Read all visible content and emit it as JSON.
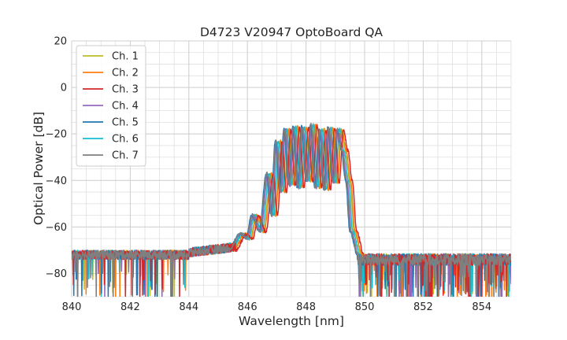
{
  "chart_data": {
    "type": "line",
    "title": "D4723 V20947 OptoBoard QA",
    "xlabel": "Wavelength [nm]",
    "ylabel": "Optical Power [dB]",
    "xlim": [
      840,
      855
    ],
    "ylim": [
      -90,
      20
    ],
    "x_ticks": [
      840,
      842,
      844,
      846,
      848,
      850,
      852,
      854
    ],
    "y_ticks": [
      -80,
      -60,
      -40,
      -20,
      0,
      20
    ],
    "x_minor_step": 0.5,
    "y_minor_step": 5,
    "grid": true,
    "legend_position": "upper-left",
    "noise_floor_db": -73,
    "series": [
      {
        "name": "Ch. 1",
        "color": "#bcbd22",
        "offset_nm": 0.1,
        "peak_db": -17.0,
        "x": [
          845.4,
          845.8,
          846.0,
          846.2,
          846.45,
          846.7,
          846.85,
          847.0,
          847.15,
          847.3,
          847.45,
          847.6,
          847.75,
          847.9,
          848.05,
          848.2,
          848.35,
          848.5,
          848.65,
          848.8,
          848.95,
          849.1,
          849.25,
          849.4,
          849.55,
          849.8
        ],
        "y": [
          -70,
          -63,
          -65,
          -55,
          -62,
          -37,
          -55,
          -23,
          -45,
          -18,
          -42,
          -17,
          -43,
          -17,
          -40,
          -16,
          -43,
          -18,
          -44,
          -17,
          -41,
          -18,
          -27,
          -40,
          -62,
          -72
        ]
      },
      {
        "name": "Ch. 2",
        "color": "#ff7f0e",
        "offset_nm": 0.12,
        "peak_db": -16.5,
        "x": [
          845.4,
          845.8,
          846.0,
          846.2,
          846.45,
          846.7,
          846.85,
          847.0,
          847.15,
          847.3,
          847.45,
          847.6,
          847.75,
          847.9,
          848.05,
          848.2,
          848.35,
          848.5,
          848.65,
          848.8,
          848.95,
          849.1,
          849.25,
          849.4,
          849.55,
          849.8
        ],
        "y": [
          -70,
          -63,
          -65,
          -55,
          -62,
          -37,
          -55,
          -23,
          -45,
          -18,
          -42,
          -17,
          -43,
          -17,
          -40,
          -16,
          -43,
          -18,
          -44,
          -17,
          -41,
          -18,
          -27,
          -40,
          -62,
          -72
        ]
      },
      {
        "name": "Ch. 3",
        "color": "#d62728",
        "offset_nm": 0.18,
        "peak_db": -17.0,
        "x": [
          845.4,
          845.8,
          846.0,
          846.2,
          846.45,
          846.7,
          846.85,
          847.0,
          847.15,
          847.3,
          847.45,
          847.6,
          847.75,
          847.9,
          848.05,
          848.2,
          848.35,
          848.5,
          848.65,
          848.8,
          848.95,
          849.1,
          849.25,
          849.4,
          849.55,
          849.8
        ],
        "y": [
          -70,
          -63,
          -65,
          -55,
          -62,
          -37,
          -55,
          -23,
          -45,
          -18,
          -42,
          -17,
          -43,
          -17,
          -40,
          -16,
          -43,
          -18,
          -44,
          -17,
          -41,
          -18,
          -27,
          -40,
          -62,
          -72
        ]
      },
      {
        "name": "Ch. 4",
        "color": "#9467bd",
        "offset_nm": 0.0,
        "peak_db": -17.0,
        "x": [
          845.4,
          845.8,
          846.0,
          846.2,
          846.45,
          846.7,
          846.85,
          847.0,
          847.15,
          847.3,
          847.45,
          847.6,
          847.75,
          847.9,
          848.05,
          848.2,
          848.35,
          848.5,
          848.65,
          848.8,
          848.95,
          849.1,
          849.25,
          849.4,
          849.55,
          849.8
        ],
        "y": [
          -70,
          -63,
          -65,
          -55,
          -62,
          -37,
          -55,
          -23,
          -45,
          -18,
          -42,
          -17,
          -43,
          -17,
          -40,
          -16,
          -43,
          -18,
          -44,
          -17,
          -41,
          -18,
          -27,
          -40,
          -62,
          -72
        ]
      },
      {
        "name": "Ch. 5",
        "color": "#1f77b4",
        "offset_nm": -0.05,
        "peak_db": -16.0,
        "x": [
          845.4,
          845.8,
          846.0,
          846.2,
          846.45,
          846.7,
          846.85,
          847.0,
          847.15,
          847.3,
          847.45,
          847.6,
          847.75,
          847.9,
          848.05,
          848.2,
          848.35,
          848.5,
          848.65,
          848.8,
          848.95,
          849.1,
          849.25,
          849.4,
          849.55,
          849.8
        ],
        "y": [
          -70,
          -63,
          -65,
          -55,
          -62,
          -37,
          -55,
          -23,
          -45,
          -18,
          -42,
          -17,
          -43,
          -17,
          -40,
          -16,
          -43,
          -18,
          -44,
          -17,
          -41,
          -18,
          -27,
          -40,
          -62,
          -72
        ]
      },
      {
        "name": "Ch. 6",
        "color": "#17becf",
        "offset_nm": 0.05,
        "peak_db": -16.5,
        "x": [
          845.4,
          845.8,
          846.0,
          846.2,
          846.45,
          846.7,
          846.85,
          847.0,
          847.15,
          847.3,
          847.45,
          847.6,
          847.75,
          847.9,
          848.05,
          848.2,
          848.35,
          848.5,
          848.65,
          848.8,
          848.95,
          849.1,
          849.25,
          849.4,
          849.55,
          849.8
        ],
        "y": [
          -70,
          -63,
          -65,
          -55,
          -62,
          -37,
          -55,
          -23,
          -45,
          -18,
          -42,
          -17,
          -43,
          -17,
          -40,
          -16,
          -43,
          -18,
          -44,
          -17,
          -41,
          -18,
          -27,
          -40,
          -62,
          -72
        ]
      },
      {
        "name": "Ch. 7",
        "color": "#7f7f7f",
        "offset_nm": -0.03,
        "peak_db": -16.0,
        "x": [
          845.4,
          845.8,
          846.0,
          846.2,
          846.45,
          846.7,
          846.85,
          847.0,
          847.15,
          847.3,
          847.45,
          847.6,
          847.75,
          847.9,
          848.05,
          848.2,
          848.35,
          848.5,
          848.65,
          848.8,
          848.95,
          849.1,
          849.25,
          849.4,
          849.55,
          849.8
        ],
        "y": [
          -70,
          -63,
          -65,
          -55,
          -62,
          -37,
          -55,
          -23,
          -45,
          -18,
          -42,
          -17,
          -43,
          -17,
          -40,
          -16,
          -43,
          -18,
          -44,
          -17,
          -41,
          -18,
          -27,
          -40,
          -62,
          -72
        ]
      }
    ]
  }
}
